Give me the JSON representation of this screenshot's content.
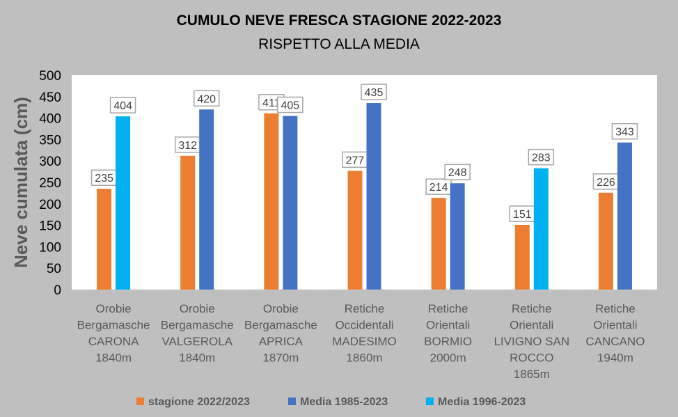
{
  "chart_data": {
    "type": "bar",
    "title": "CUMULO NEVE FRESCA STAGIONE 2022-2023",
    "subtitle": "RISPETTO ALLA MEDIA",
    "ylabel": "Neve cumulata (cm)",
    "xlabel": "",
    "ylim": [
      0,
      500
    ],
    "yticks": [
      0,
      50,
      100,
      150,
      200,
      250,
      300,
      350,
      400,
      450,
      500
    ],
    "grid": false,
    "legend_position": "bottom",
    "categories": [
      [
        "Orobie",
        "Bergamasche",
        "CARONA",
        "1840m"
      ],
      [
        "Orobie",
        "Bergamasche",
        "VALGEROLA",
        "1840m"
      ],
      [
        "Orobie",
        "Bergamasche",
        "APRICA",
        "1870m"
      ],
      [
        "Retiche",
        "Occidentali",
        "MADESIMO",
        "1860m"
      ],
      [
        "Retiche",
        "Orientali",
        "BORMIO",
        "2000m"
      ],
      [
        "Retiche",
        "Orientali",
        "LIVIGNO SAN",
        "ROCCO",
        "1865m"
      ],
      [
        "Retiche",
        "Orientali",
        "CANCANO",
        "1940m"
      ]
    ],
    "series": [
      {
        "name": "stagione 2022/2023",
        "color": "#ed7d31",
        "values": [
          235,
          312,
          411,
          277,
          214,
          151,
          226
        ]
      },
      {
        "name": "Media 1985-2023",
        "color": "#4472c4",
        "values": [
          null,
          420,
          405,
          435,
          248,
          null,
          343
        ]
      },
      {
        "name": "Media 1996-2023",
        "color": "#00b0f0",
        "values": [
          404,
          null,
          null,
          null,
          null,
          283,
          null
        ]
      }
    ]
  }
}
